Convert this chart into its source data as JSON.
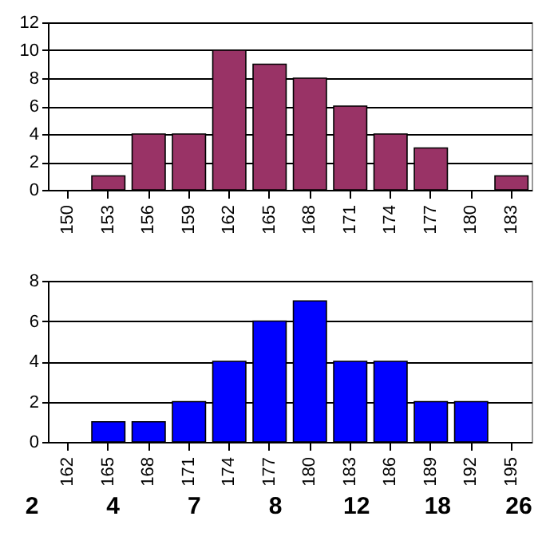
{
  "chart_data": [
    {
      "type": "bar",
      "categories": [
        "150",
        "153",
        "156",
        "159",
        "162",
        "165",
        "168",
        "171",
        "174",
        "177",
        "180",
        "183"
      ],
      "values": [
        0,
        1,
        4,
        4,
        10,
        9,
        8,
        6,
        4,
        3,
        0,
        1
      ],
      "color": "#993366",
      "ylim": [
        0,
        12
      ],
      "yticks": [
        0,
        2,
        4,
        6,
        8,
        10,
        12
      ],
      "grid": "y"
    },
    {
      "type": "bar",
      "categories": [
        "162",
        "165",
        "168",
        "171",
        "174",
        "177",
        "180",
        "183",
        "186",
        "189",
        "192",
        "195"
      ],
      "values": [
        0,
        1,
        1,
        2,
        4,
        6,
        7,
        4,
        4,
        2,
        2,
        0
      ],
      "color": "#0000ff",
      "ylim": [
        0,
        8
      ],
      "yticks": [
        0,
        2,
        4,
        6,
        8
      ],
      "grid": "y",
      "annotations": [
        "2",
        "4",
        "7",
        "8",
        "12",
        "18",
        "26"
      ]
    }
  ]
}
